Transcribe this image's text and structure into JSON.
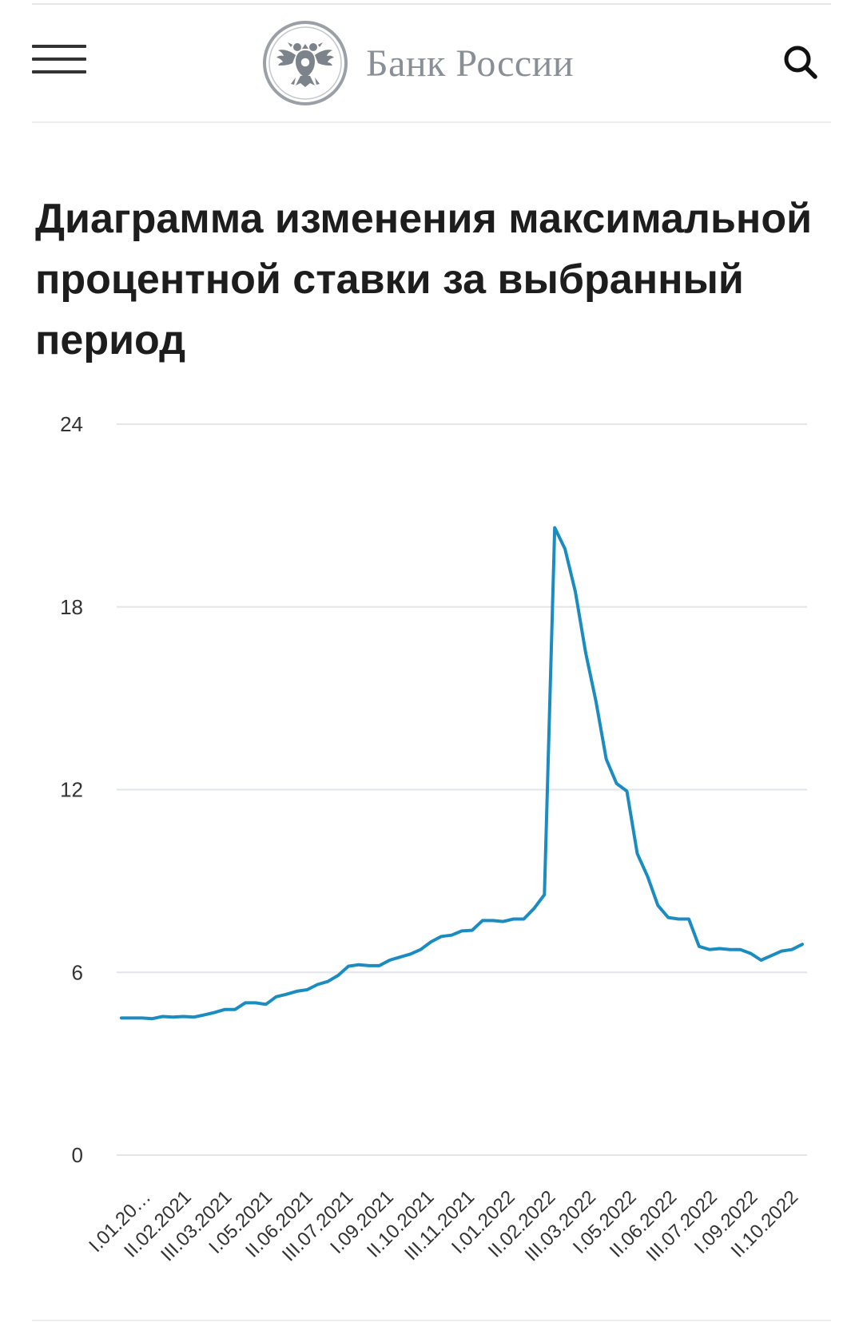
{
  "header": {
    "brand_name": "Банк России",
    "menu_icon": "hamburger-menu-icon",
    "search_icon": "search-icon",
    "logo_icon": "double-headed-eagle-emblem"
  },
  "page": {
    "title": "Диаграмма изменения максимальной процентной ставки за выбранный период"
  },
  "colors": {
    "line": "#1a8cc0",
    "grid": "#e3e5e8",
    "axis_text": "#333333",
    "brand_text": "#8a8f96"
  },
  "chart_data": {
    "type": "line",
    "title": "",
    "xlabel": "",
    "ylabel": "",
    "ylim": [
      0,
      24
    ],
    "yticks": [
      0,
      6,
      12,
      18,
      24
    ],
    "grid": true,
    "legend": "none",
    "xtick_labels": [
      "I.01.20…",
      "II.02.2021",
      "III.03.2021",
      "I.05.2021",
      "II.06.2021",
      "III.07.2021",
      "I.09.2021",
      "II.10.2021",
      "III.11.2021",
      "I.01.2022",
      "II.02.2022",
      "III.03.2022",
      "I.05.2022",
      "II.06.2022",
      "III.07.2022",
      "I.09.2022",
      "II.10.2022"
    ],
    "series": [
      {
        "values": [
          4.5,
          4.5,
          4.5,
          4.48,
          4.55,
          4.53,
          4.55,
          4.53,
          4.6,
          4.68,
          4.78,
          4.78,
          5.0,
          5.0,
          4.95,
          5.2,
          5.28,
          5.38,
          5.43,
          5.6,
          5.7,
          5.9,
          6.2,
          6.25,
          6.22,
          6.22,
          6.4,
          6.5,
          6.6,
          6.75,
          7.0,
          7.18,
          7.22,
          7.36,
          7.38,
          7.7,
          7.7,
          7.67,
          7.75,
          7.75,
          8.1,
          8.55,
          20.6,
          19.9,
          18.5,
          16.5,
          14.9,
          13.0,
          12.2,
          11.95,
          9.9,
          9.15,
          8.2,
          7.8,
          7.75,
          7.75,
          6.85,
          6.75,
          6.78,
          6.75,
          6.75,
          6.62,
          6.4,
          6.55,
          6.7,
          6.75,
          6.92
        ]
      }
    ]
  }
}
